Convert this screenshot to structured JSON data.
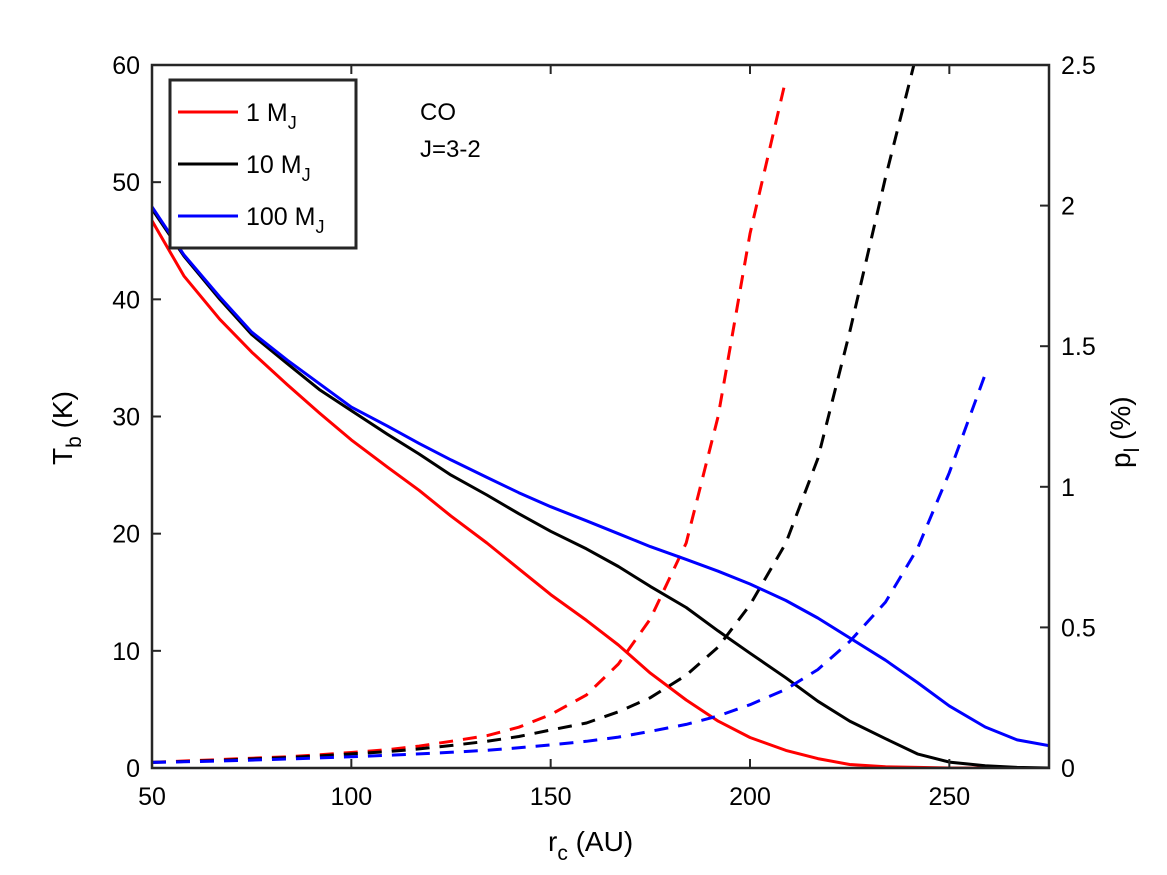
{
  "chart_data": {
    "type": "line",
    "title": "",
    "xlabel": {
      "main": "r",
      "sub": "c",
      "rest": " (AU)"
    },
    "ylabel_left": {
      "main": "T",
      "sub": "b",
      "rest": " (K)"
    },
    "ylabel_right": {
      "main": "p",
      "sub": "l",
      "rest": " (%)"
    },
    "xlim": [
      50,
      275
    ],
    "ylim_left": [
      0,
      60
    ],
    "ylim_right": [
      0,
      2.5
    ],
    "x_ticks": [
      50,
      100,
      150,
      200,
      250
    ],
    "x_tick_labels": [
      "50",
      "100",
      "150",
      "200",
      "250"
    ],
    "y_left_ticks": [
      0,
      10,
      20,
      30,
      40,
      50,
      60
    ],
    "y_left_tick_labels": [
      "0",
      "10",
      "20",
      "30",
      "40",
      "50",
      "60"
    ],
    "y_right_ticks": [
      0,
      0.5,
      1,
      1.5,
      2,
      2.5
    ],
    "y_right_tick_labels": [
      "0",
      "0.5",
      "1",
      "1.5",
      "2",
      "2.5"
    ],
    "grid": false,
    "legend_position": "top-left",
    "annotation": [
      "CO",
      "J=3-2"
    ],
    "colors": {
      "red": "#ff0000",
      "black": "#000000",
      "blue": "#0000ff"
    },
    "series": [
      {
        "name": "1 MJ",
        "label_main": "1 M",
        "label_sub": "J",
        "color": "#ff0000",
        "x": [
          50,
          58,
          67,
          75,
          84,
          92,
          100,
          109,
          117,
          125,
          134,
          142,
          150,
          159,
          167,
          175,
          184,
          192,
          200,
          209,
          217,
          225,
          234,
          242,
          250,
          259,
          267,
          275
        ],
        "tb": [
          46.7,
          42,
          38.3,
          35.5,
          32.7,
          30.3,
          28,
          25.7,
          23.7,
          21.5,
          19.2,
          17,
          14.8,
          12.6,
          10.5,
          8.1,
          5.8,
          4,
          2.6,
          1.5,
          0.8,
          0.3,
          0.1,
          0.05,
          0,
          0,
          0,
          0
        ],
        "pl": [
          0.02,
          0.025,
          0.03,
          0.035,
          0.04,
          0.047,
          0.055,
          0.065,
          0.078,
          0.095,
          0.115,
          0.145,
          0.19,
          0.26,
          0.37,
          0.53,
          0.8,
          1.25,
          1.9,
          2.45
        ]
      },
      {
        "name": "10 MJ",
        "label_main": "10 M",
        "label_sub": "J",
        "color": "#000000",
        "x": [
          50,
          58,
          67,
          75,
          84,
          92,
          100,
          109,
          117,
          125,
          134,
          142,
          150,
          159,
          167,
          175,
          184,
          192,
          200,
          209,
          217,
          225,
          234,
          242,
          250,
          259,
          267,
          275
        ],
        "tb": [
          47.7,
          43.7,
          40,
          37,
          34.5,
          32.3,
          30.5,
          28.5,
          26.8,
          25,
          23.3,
          21.7,
          20.2,
          18.7,
          17.2,
          15.5,
          13.7,
          11.7,
          9.8,
          7.7,
          5.7,
          4,
          2.5,
          1.2,
          0.5,
          0.2,
          0.05,
          0
        ],
        "pl": [
          0.02,
          0.023,
          0.027,
          0.032,
          0.037,
          0.043,
          0.05,
          0.058,
          0.068,
          0.08,
          0.095,
          0.112,
          0.135,
          0.16,
          0.2,
          0.25,
          0.33,
          0.43,
          0.58,
          0.8,
          1.1,
          1.55,
          2.1,
          2.55
        ]
      },
      {
        "name": "100 MJ",
        "label_main": "100 M",
        "label_sub": "J",
        "color": "#0000ff",
        "x": [
          50,
          58,
          67,
          75,
          84,
          92,
          100,
          109,
          117,
          125,
          134,
          142,
          150,
          159,
          167,
          175,
          184,
          192,
          200,
          209,
          217,
          225,
          234,
          242,
          250,
          259,
          267,
          275
        ],
        "tb": [
          47.9,
          43.8,
          40.2,
          37.2,
          34.8,
          32.8,
          30.8,
          29.2,
          27.7,
          26.3,
          24.8,
          23.5,
          22.3,
          21.1,
          20,
          18.9,
          17.8,
          16.8,
          15.7,
          14.3,
          12.8,
          11.1,
          9.2,
          7.3,
          5.3,
          3.5,
          2.4,
          1.9
        ],
        "pl": [
          0.02,
          0.022,
          0.025,
          0.028,
          0.032,
          0.036,
          0.04,
          0.045,
          0.05,
          0.056,
          0.063,
          0.072,
          0.082,
          0.095,
          0.11,
          0.13,
          0.155,
          0.185,
          0.225,
          0.28,
          0.35,
          0.45,
          0.59,
          0.78,
          1.05,
          1.4
        ]
      }
    ]
  }
}
